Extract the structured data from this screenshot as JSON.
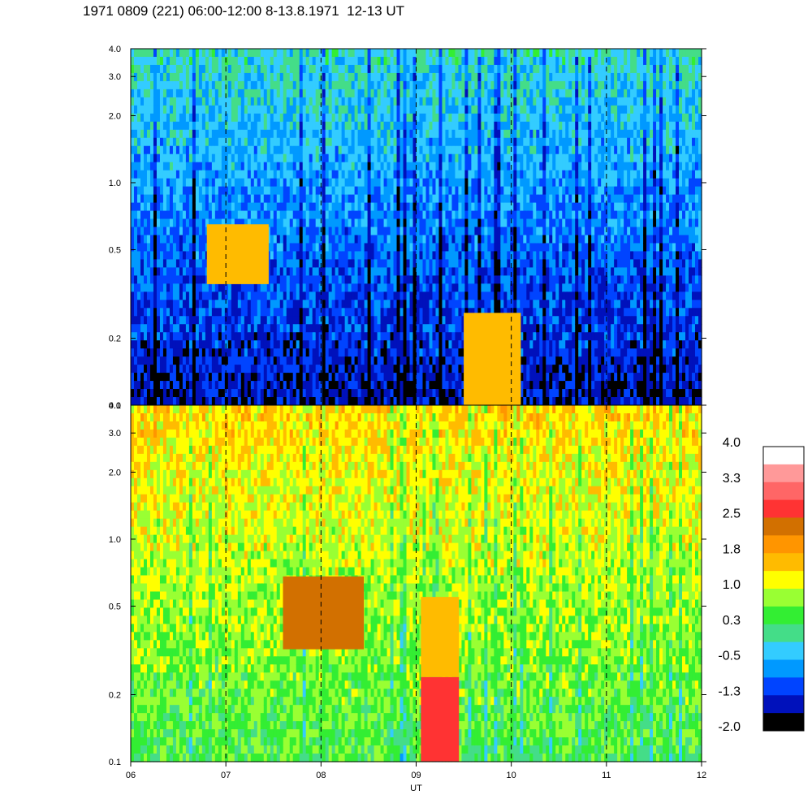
{
  "title": "1971 0809 (221) 06:00-12:00 8-13.8.1971  12-13 UT",
  "chart_data": [
    {
      "type": "heatmap",
      "panel": "top",
      "xlabel": "",
      "ylabel": "",
      "ylim": [
        0.1,
        4.0
      ],
      "yscale": "log",
      "yticks": [
        "4.0",
        "3.0",
        "2.0",
        "1.0",
        "0.5",
        "0.2",
        "0.1"
      ],
      "ytick_values": [
        4.0,
        3.0,
        2.0,
        1.0,
        0.5,
        0.2,
        0.1
      ],
      "xlim": [
        6,
        12
      ],
      "vertical_dashed_lines_hours": [
        7,
        8,
        9,
        10,
        11
      ],
      "background_level": -0.8,
      "features": [
        {
          "x0": 6.8,
          "x1": 7.45,
          "y0": 0.35,
          "y1": 0.65,
          "level": 1.6
        },
        {
          "x0": 9.5,
          "x1": 10.1,
          "y0": 0.1,
          "y1": 0.26,
          "level": 1.6
        }
      ]
    },
    {
      "type": "heatmap",
      "panel": "bottom",
      "xlabel": "UT",
      "ylabel": "",
      "ylim": [
        0.1,
        4.0
      ],
      "yscale": "log",
      "yticks": [
        "4.0",
        "3.0",
        "2.0",
        "1.0",
        "0.5",
        "0.2",
        "0.1"
      ],
      "ytick_values": [
        4.0,
        3.0,
        2.0,
        1.0,
        0.5,
        0.2,
        0.1
      ],
      "xlim": [
        6,
        12
      ],
      "xticks": [
        "06",
        "07",
        "08",
        "09",
        "10",
        "11",
        "12"
      ],
      "xtick_values": [
        6,
        7,
        8,
        9,
        10,
        11,
        12
      ],
      "vertical_dashed_lines_hours": [
        7,
        8,
        9,
        10,
        11
      ],
      "background_level": 0.9,
      "features": [
        {
          "x0": 7.6,
          "x1": 8.45,
          "y0": 0.32,
          "y1": 0.68,
          "level": 2.2
        },
        {
          "x0": 9.05,
          "x1": 9.45,
          "y0": 0.1,
          "y1": 0.24,
          "level": 2.6
        },
        {
          "x0": 9.05,
          "x1": 9.45,
          "y0": 0.24,
          "y1": 0.55,
          "level": 1.7
        }
      ]
    }
  ],
  "colorbar": {
    "labels": [
      "4.0",
      "3.3",
      "2.5",
      "1.8",
      "1.0",
      "0.3",
      "-0.5",
      "-1.3",
      "-2.0"
    ],
    "colors_top_to_bottom": [
      "#ffffff",
      "#ff9999",
      "#ff6666",
      "#ff3333",
      "#d27000",
      "#ff9500",
      "#ffbb00",
      "#ffff00",
      "#99ff33",
      "#33ee33",
      "#44dd88",
      "#33ccff",
      "#0099ff",
      "#0044ff",
      "#0011bb",
      "#000000"
    ]
  }
}
